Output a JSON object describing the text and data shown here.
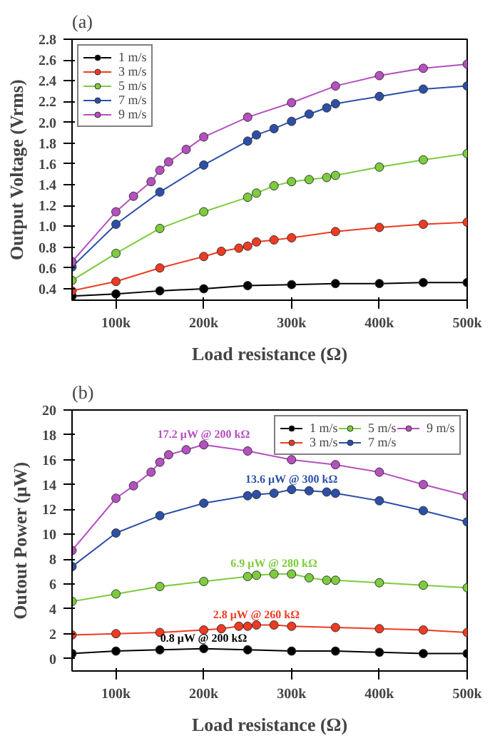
{
  "chart_data": [
    {
      "type": "line",
      "title": "(a)",
      "xlabel": "Load resistance (Ω)",
      "ylabel": "Output Voltage (Vrms)",
      "marker": "circle",
      "line_style": "solid",
      "grid": false,
      "legend": "top left",
      "xlim": [
        50000,
        500000
      ],
      "ylim": [
        0.29,
        2.8
      ],
      "xticks": [
        {
          "value": 100000,
          "label": "100k"
        },
        {
          "value": 200000,
          "label": "200k"
        },
        {
          "value": 300000,
          "label": "300k"
        },
        {
          "value": 400000,
          "label": "400k"
        },
        {
          "value": 500000,
          "label": "500k"
        }
      ],
      "yticks": [
        0.4,
        0.6,
        0.8,
        {
          "value": 1,
          "label": "1.0"
        },
        1.2,
        1.4,
        1.6,
        1.8,
        {
          "value": 2,
          "label": "2.0"
        },
        2.2,
        2.4,
        2.6,
        2.8
      ],
      "series": [
        {
          "name": "1 m/s",
          "color": "#000000",
          "x": [
            50000,
            100000,
            150000,
            200000,
            250000,
            300000,
            350000,
            400000,
            450000,
            500000
          ],
          "values": [
            0.33,
            0.35,
            0.38,
            0.4,
            0.43,
            0.44,
            0.45,
            0.45,
            0.46,
            0.46
          ]
        },
        {
          "name": "3 m/s",
          "color": "#f03a22",
          "x": [
            50000,
            100000,
            150000,
            200000,
            220000,
            240000,
            250000,
            260000,
            280000,
            300000,
            350000,
            400000,
            450000,
            500000
          ],
          "values": [
            0.38,
            0.47,
            0.6,
            0.71,
            0.76,
            0.79,
            0.81,
            0.85,
            0.87,
            0.89,
            0.95,
            0.99,
            1.02,
            1.04
          ]
        },
        {
          "name": "5 m/s",
          "color": "#7ccc3c",
          "x": [
            50000,
            100000,
            150000,
            200000,
            250000,
            260000,
            280000,
            300000,
            320000,
            340000,
            350000,
            400000,
            450000,
            500000
          ],
          "values": [
            0.48,
            0.74,
            0.98,
            1.14,
            1.28,
            1.32,
            1.39,
            1.43,
            1.45,
            1.47,
            1.49,
            1.57,
            1.64,
            1.7
          ]
        },
        {
          "name": "7 m/s",
          "color": "#2c4fa8",
          "x": [
            50000,
            100000,
            150000,
            200000,
            250000,
            260000,
            280000,
            300000,
            320000,
            340000,
            350000,
            400000,
            450000,
            500000
          ],
          "values": [
            0.61,
            1.02,
            1.33,
            1.59,
            1.82,
            1.88,
            1.94,
            2.01,
            2.08,
            2.14,
            2.18,
            2.25,
            2.32,
            2.35
          ]
        },
        {
          "name": "9 m/s",
          "color": "#b64fc0",
          "x": [
            50000,
            100000,
            120000,
            140000,
            150000,
            160000,
            180000,
            200000,
            250000,
            300000,
            350000,
            400000,
            450000,
            500000
          ],
          "values": [
            0.66,
            1.14,
            1.29,
            1.43,
            1.54,
            1.62,
            1.74,
            1.86,
            2.05,
            2.19,
            2.35,
            2.45,
            2.52,
            2.56
          ]
        }
      ]
    },
    {
      "type": "line",
      "title": "(b)",
      "xlabel": "Load resistance (Ω)",
      "ylabel": "Outout Power (μW)",
      "marker": "circle",
      "line_style": "solid",
      "grid": false,
      "legend": "top right",
      "xlim": [
        50000,
        500000
      ],
      "ylim": [
        -1,
        20
      ],
      "xticks": [
        {
          "value": 100000,
          "label": "100k"
        },
        {
          "value": 200000,
          "label": "200k"
        },
        {
          "value": 300000,
          "label": "300k"
        },
        {
          "value": 400000,
          "label": "400k"
        },
        {
          "value": 500000,
          "label": "500k"
        }
      ],
      "yticks": [
        0,
        2,
        4,
        6,
        8,
        10,
        12,
        14,
        16,
        18,
        20
      ],
      "series": [
        {
          "name": "1 m/s",
          "color": "#000000",
          "x": [
            50000,
            100000,
            150000,
            200000,
            250000,
            300000,
            350000,
            400000,
            450000,
            500000
          ],
          "values": [
            0.4,
            0.6,
            0.7,
            0.8,
            0.7,
            0.6,
            0.6,
            0.5,
            0.4,
            0.4
          ]
        },
        {
          "name": "3 m/s",
          "color": "#f03a22",
          "x": [
            50000,
            100000,
            150000,
            200000,
            220000,
            240000,
            250000,
            260000,
            280000,
            300000,
            350000,
            400000,
            450000,
            500000
          ],
          "values": [
            1.9,
            2.0,
            2.1,
            2.3,
            2.4,
            2.6,
            2.6,
            2.7,
            2.7,
            2.6,
            2.5,
            2.4,
            2.3,
            2.1
          ]
        },
        {
          "name": "5 m/s",
          "color": "#7ccc3c",
          "x": [
            50000,
            100000,
            150000,
            200000,
            250000,
            260000,
            280000,
            300000,
            320000,
            340000,
            350000,
            400000,
            450000,
            500000
          ],
          "values": [
            4.6,
            5.2,
            5.8,
            6.2,
            6.6,
            6.7,
            6.8,
            6.8,
            6.5,
            6.3,
            6.3,
            6.1,
            5.9,
            5.7
          ]
        },
        {
          "name": "7 m/s",
          "color": "#2c4fa8",
          "x": [
            50000,
            100000,
            150000,
            200000,
            250000,
            260000,
            280000,
            300000,
            320000,
            340000,
            350000,
            400000,
            450000,
            500000
          ],
          "values": [
            7.4,
            10.1,
            11.5,
            12.5,
            13.1,
            13.2,
            13.3,
            13.6,
            13.5,
            13.4,
            13.3,
            12.7,
            11.9,
            11.0
          ]
        },
        {
          "name": "9 m/s",
          "color": "#b64fc0",
          "x": [
            50000,
            100000,
            120000,
            140000,
            150000,
            160000,
            180000,
            200000,
            250000,
            300000,
            350000,
            400000,
            450000,
            500000
          ],
          "values": [
            8.7,
            12.9,
            13.9,
            15.0,
            15.8,
            16.4,
            16.8,
            17.2,
            16.7,
            16.0,
            15.6,
            15.0,
            14.0,
            13.1
          ]
        }
      ],
      "annotations": [
        {
          "text": "17.2 μW @ 200 kΩ",
          "x": 200000,
          "y": 17.2
        },
        {
          "text": "13.6 μW @ 300 kΩ",
          "x": 300000,
          "y": 13.6
        },
        {
          "text": "6.9 μW @ 280 kΩ",
          "x": 280000,
          "y": 6.8
        },
        {
          "text": "2.8 μW @ 260 kΩ",
          "x": 260000,
          "y": 2.7
        },
        {
          "text": "0.8 μW @ 200 kΩ",
          "x": 200000,
          "y": 0.8
        }
      ]
    }
  ]
}
